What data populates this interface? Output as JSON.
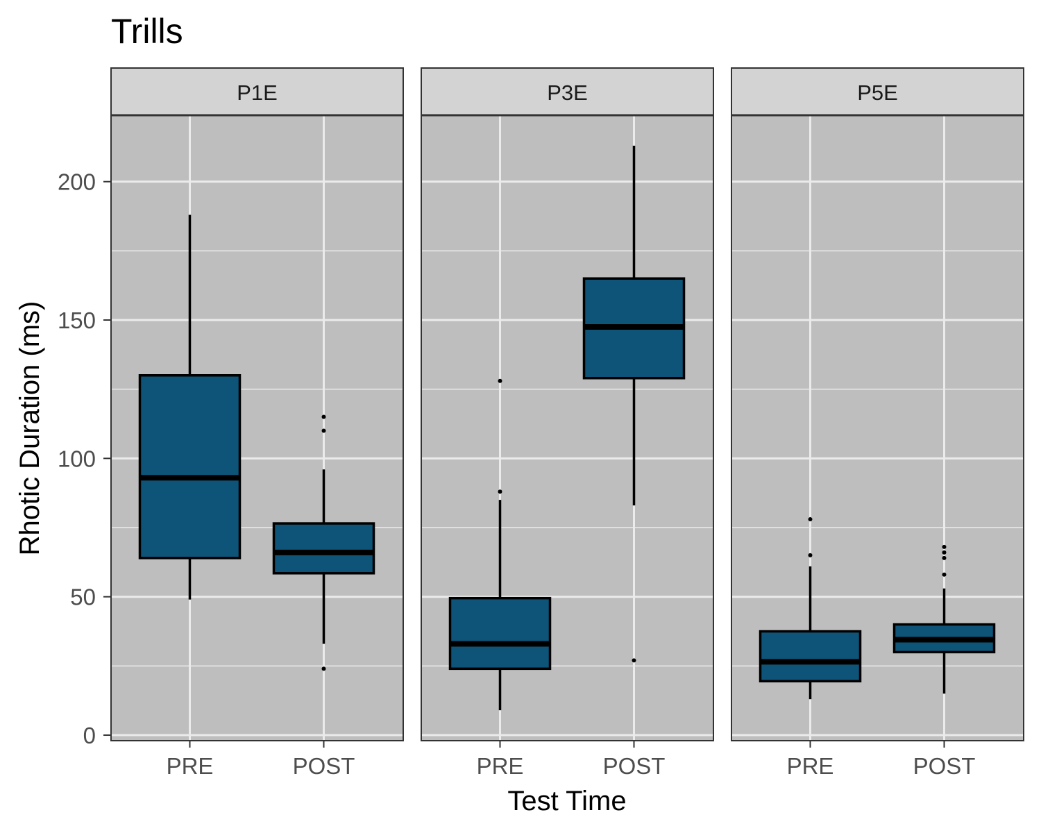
{
  "chart_data": {
    "type": "boxplot",
    "title": "Trills",
    "xlabel": "Test Time",
    "ylabel": "Rhotic Duration (ms)",
    "ylim": [
      -2,
      224
    ],
    "yticks": [
      0,
      50,
      100,
      150,
      200
    ],
    "categories": [
      "PRE",
      "POST"
    ],
    "grid": true,
    "colors": {
      "panel_bg": "#bebebe",
      "grid": "#ebebeb",
      "box_fill": "#0e5478",
      "strip_bg": "#d3d3d3",
      "border": "#333333"
    },
    "panels": [
      {
        "name": "P1E",
        "boxes": [
          {
            "category": "PRE",
            "lower_whisker": 49,
            "q1": 64,
            "median": 93,
            "q3": 130,
            "upper_whisker": 188,
            "outliers": []
          },
          {
            "category": "POST",
            "lower_whisker": 33,
            "q1": 58.5,
            "median": 66,
            "q3": 76.5,
            "upper_whisker": 96,
            "outliers": [
              24,
              110,
              115
            ]
          }
        ]
      },
      {
        "name": "P3E",
        "boxes": [
          {
            "category": "PRE",
            "lower_whisker": 9,
            "q1": 24,
            "median": 33,
            "q3": 49.5,
            "upper_whisker": 85,
            "outliers": [
              88,
              128
            ]
          },
          {
            "category": "POST",
            "lower_whisker": 83,
            "q1": 129,
            "median": 147.5,
            "q3": 165,
            "upper_whisker": 213,
            "outliers": [
              27
            ]
          }
        ]
      },
      {
        "name": "P5E",
        "boxes": [
          {
            "category": "PRE",
            "lower_whisker": 13,
            "q1": 19.5,
            "median": 26.5,
            "q3": 37.5,
            "upper_whisker": 61,
            "outliers": [
              65,
              78
            ]
          },
          {
            "category": "POST",
            "lower_whisker": 15,
            "q1": 30,
            "median": 34.5,
            "q3": 40,
            "upper_whisker": 53,
            "outliers": [
              58,
              64,
              66,
              68
            ]
          }
        ]
      }
    ]
  }
}
